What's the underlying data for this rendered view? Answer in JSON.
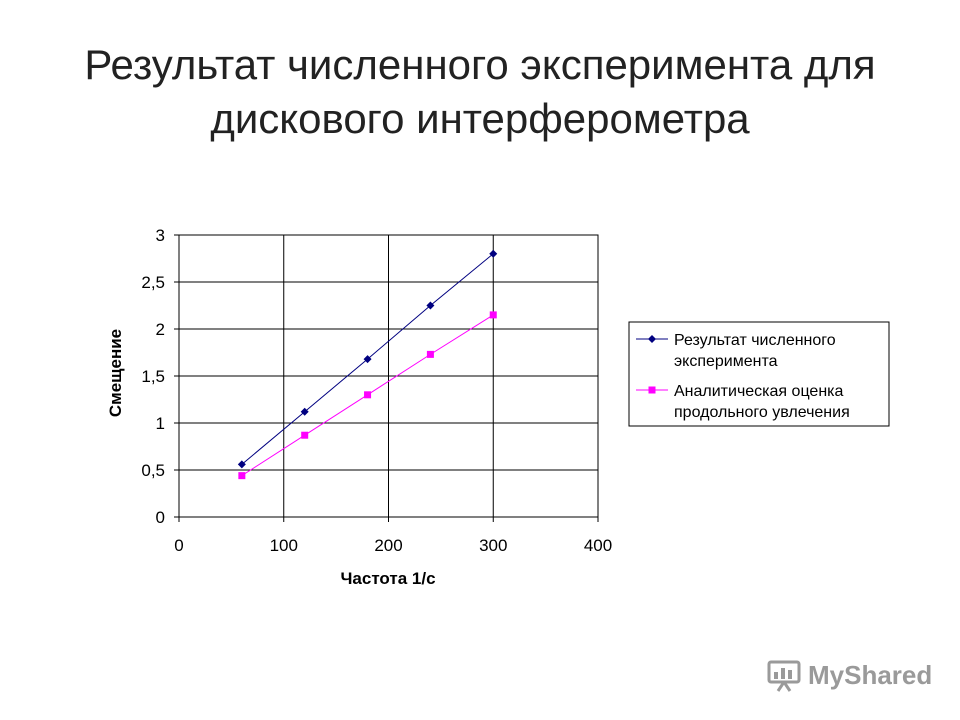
{
  "slide": {
    "title_line1": "Результат численного эксперимента для",
    "title_line2": "дискового интерферометра"
  },
  "watermark": {
    "text": "MyShared",
    "icon": "presentation-board-icon"
  },
  "chart_data": {
    "type": "line",
    "xlabel": "Частота 1/с",
    "ylabel": "Смещение",
    "xlim": [
      0,
      400
    ],
    "ylim": [
      0,
      3
    ],
    "x_ticks": [
      0,
      100,
      200,
      300,
      400
    ],
    "y_ticks": [
      0,
      0.5,
      1,
      1.5,
      2,
      2.5,
      3
    ],
    "x_tick_labels": [
      "0",
      "100",
      "200",
      "300",
      "400"
    ],
    "y_tick_labels": [
      "0",
      "0,5",
      "1",
      "1,5",
      "2",
      "2,5",
      "3"
    ],
    "grid": true,
    "legend_position": "right",
    "series": [
      {
        "name": "Результат численного эксперимента",
        "legend_line1": "Результат численного",
        "legend_line2": "эксперимента",
        "color": "#000080",
        "marker": "diamond",
        "x": [
          60,
          120,
          180,
          240,
          300
        ],
        "y": [
          0.56,
          1.12,
          1.68,
          2.25,
          2.8
        ]
      },
      {
        "name": "Аналитическая оценка продольного увлечения",
        "legend_line1": "Аналитическая оценка",
        "legend_line2": "продольного увлечения",
        "color": "#ff00ff",
        "marker": "square",
        "x": [
          60,
          120,
          180,
          240,
          300
        ],
        "y": [
          0.44,
          0.87,
          1.3,
          1.73,
          2.15
        ]
      }
    ]
  }
}
